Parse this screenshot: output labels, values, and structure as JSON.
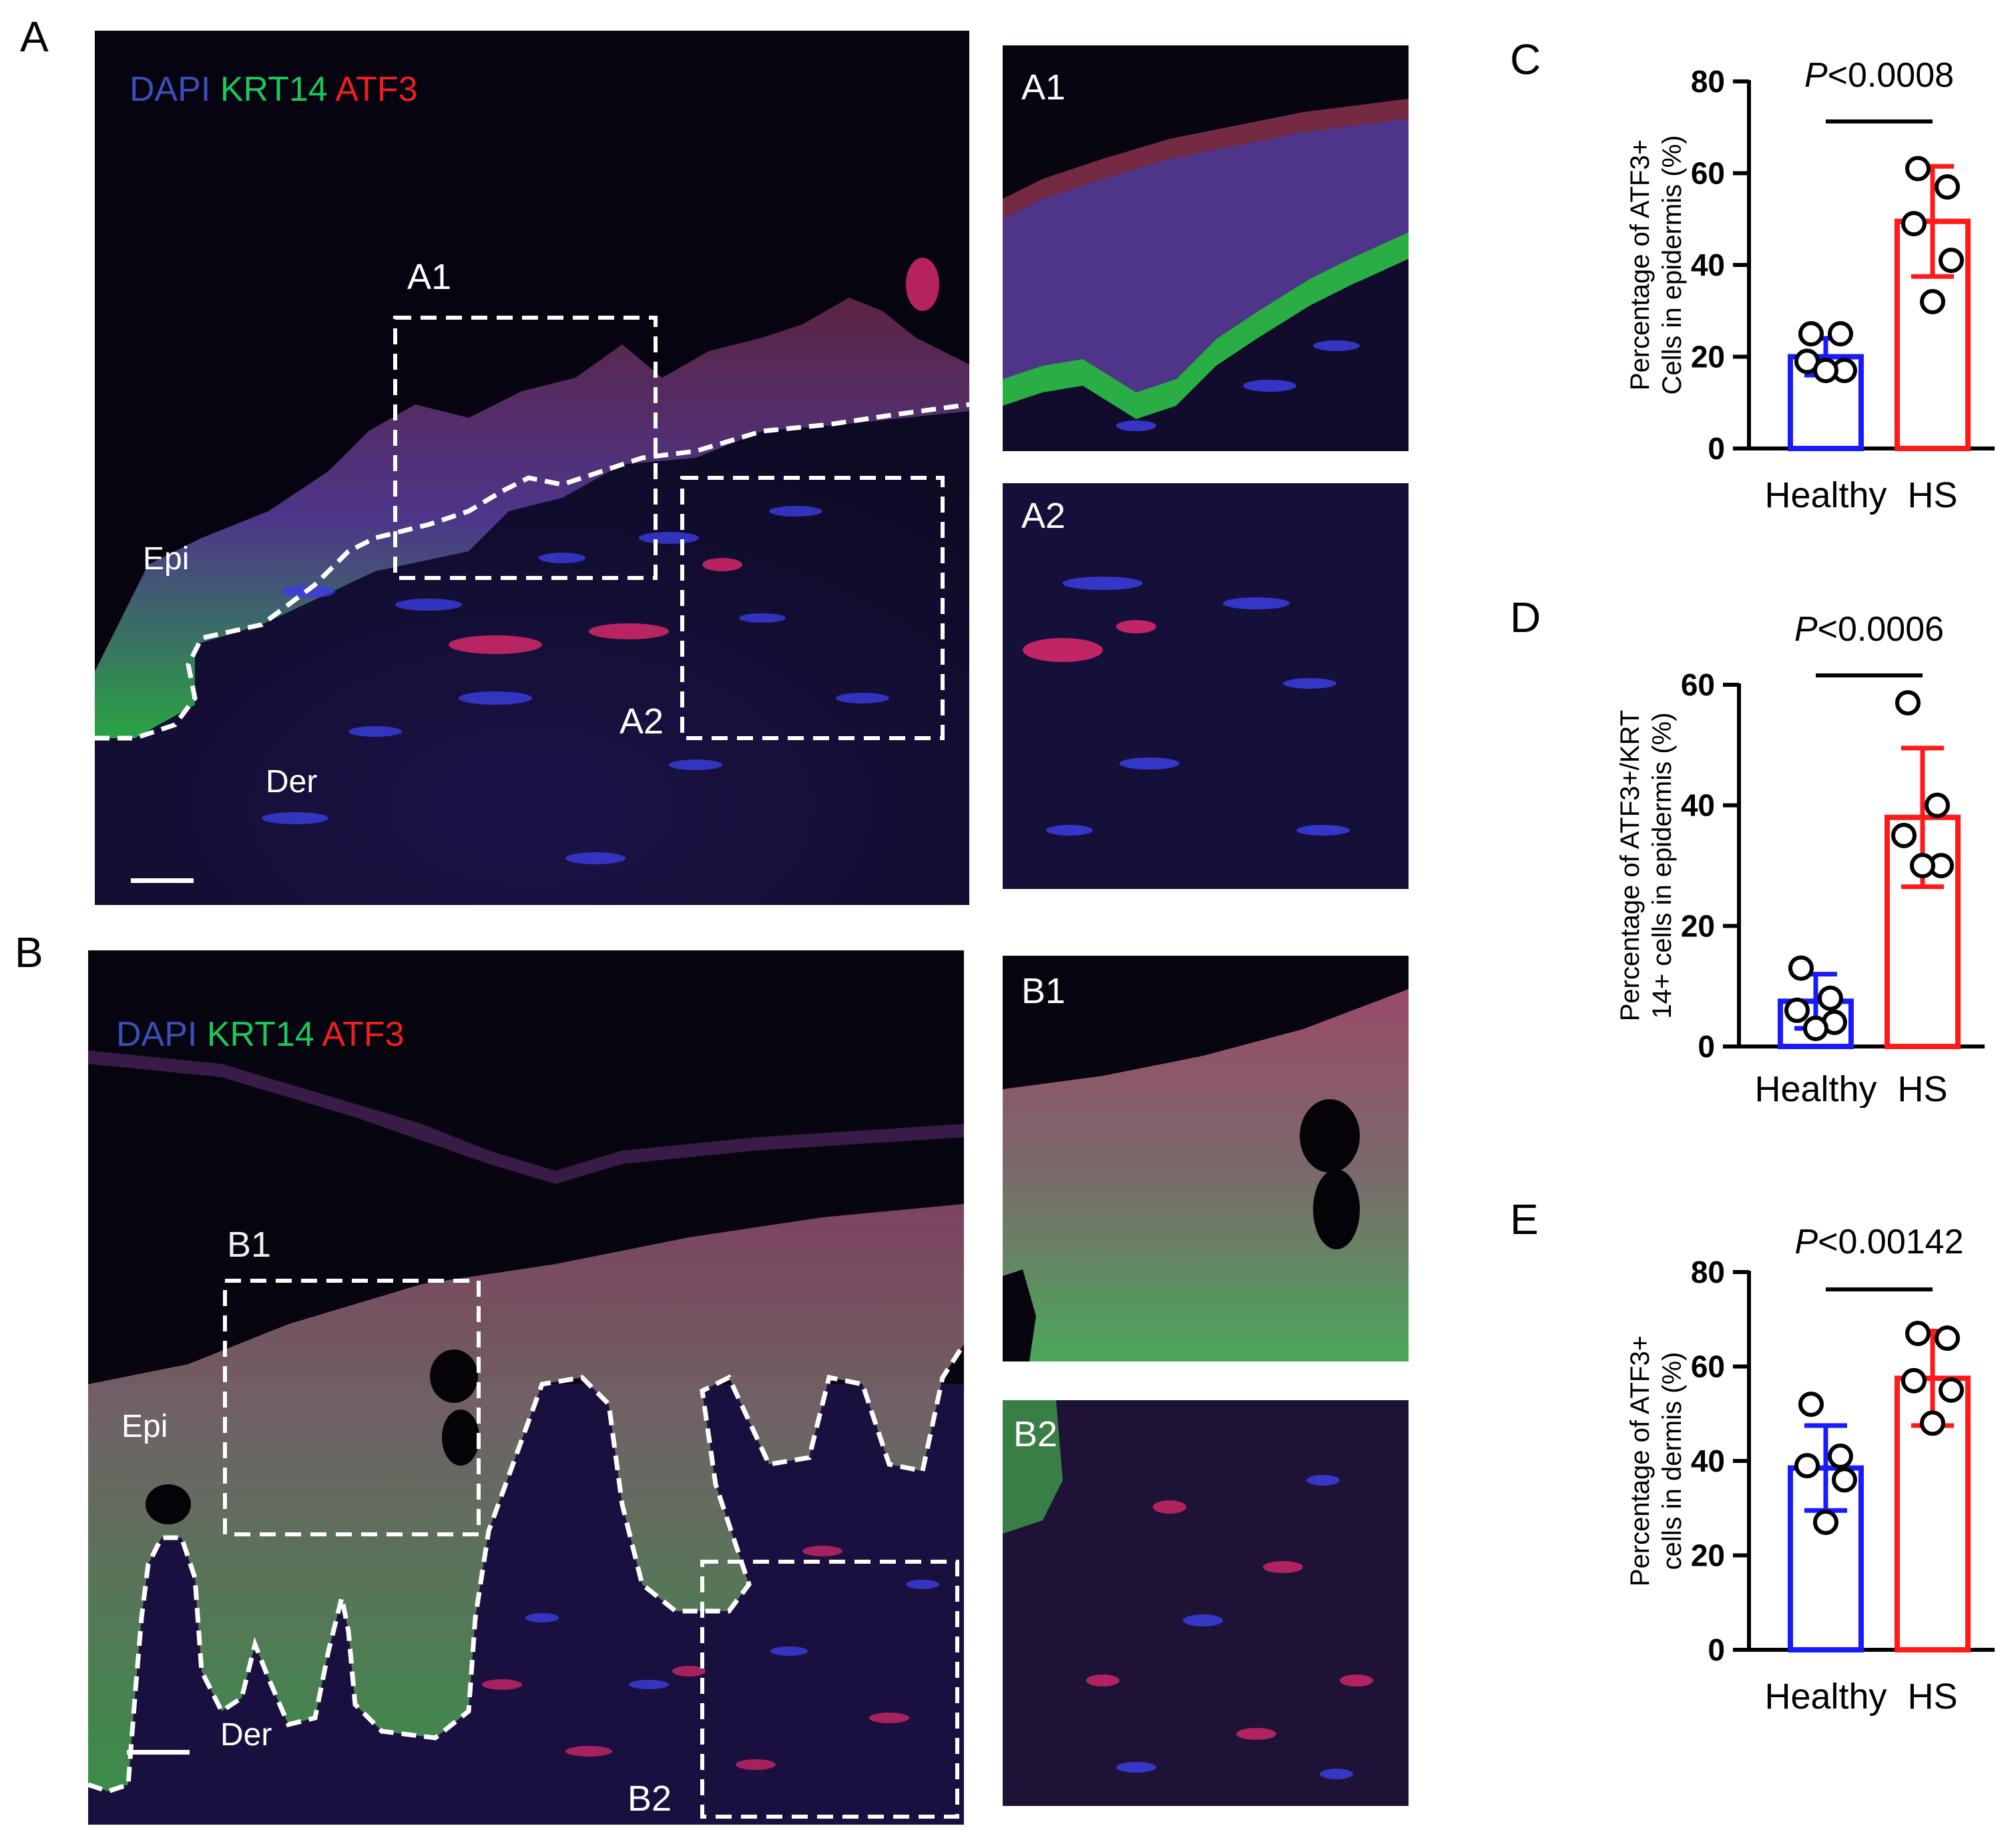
{
  "figure": {
    "panel_letters": {
      "A": "A",
      "B": "B",
      "C": "C",
      "D": "D",
      "E": "E"
    },
    "panel_a": {
      "channels": {
        "dapi": "DAPI",
        "krt14": "KRT14",
        "atf3": "ATF3"
      },
      "regions": {
        "epi": "Epi",
        "der": "Der"
      },
      "boxes": {
        "a1": "A1",
        "a2": "A2"
      },
      "insets": {
        "a1": "A1",
        "a2": "A2"
      }
    },
    "panel_b": {
      "channels": {
        "dapi": "DAPI",
        "krt14": "KRT14",
        "atf3": "ATF3"
      },
      "regions": {
        "epi": "Epi",
        "der": "Der"
      },
      "boxes": {
        "b1": "B1",
        "b2": "B2"
      },
      "insets": {
        "b1": "B1",
        "b2": "B2"
      }
    },
    "colors": {
      "healthy": "#1a1aff",
      "hs": "#ff1a1a",
      "dapi": "#3a4fb8",
      "krt14": "#19c95a",
      "atf3": "#ee1f1f"
    }
  },
  "chart_data": [
    {
      "id": "C",
      "type": "bar",
      "categories": [
        "Healthy",
        "HS"
      ],
      "values": [
        20.0,
        49.5
      ],
      "errors": [
        4.0,
        12.0
      ],
      "points": [
        [
          25,
          25,
          19,
          17,
          17
        ],
        [
          61,
          57,
          49,
          41,
          32
        ]
      ],
      "ylabel_lines": [
        "Percentage of ATF3+",
        "Cells in epidermis (%)"
      ],
      "yticks": [
        "0",
        "20",
        "40",
        "60",
        "80"
      ],
      "ylim": [
        0,
        80
      ],
      "p_prefix": "P",
      "p_value": "<0.0008"
    },
    {
      "id": "D",
      "type": "bar",
      "categories": [
        "Healthy",
        "HS"
      ],
      "values": [
        7.5,
        38.0
      ],
      "errors": [
        4.5,
        11.5
      ],
      "points": [
        [
          13,
          8,
          6,
          4,
          3
        ],
        [
          57,
          40,
          35,
          30,
          30
        ]
      ],
      "ylabel_lines": [
        "Percentage of ATF3+/KRT",
        "14+ cells in epidermis (%)"
      ],
      "yticks": [
        "0",
        "20",
        "40",
        "60"
      ],
      "ylim": [
        0,
        60
      ],
      "p_prefix": "P",
      "p_value": "<0.0006"
    },
    {
      "id": "E",
      "type": "bar",
      "categories": [
        "Healthy",
        "HS"
      ],
      "values": [
        38.5,
        57.5
      ],
      "errors": [
        9.0,
        10.0
      ],
      "points": [
        [
          52,
          41,
          39,
          36,
          27
        ],
        [
          67,
          66,
          57,
          55,
          48
        ]
      ],
      "ylabel_lines": [
        "Percentage of ATF3+",
        "cells in dermis (%)"
      ],
      "yticks": [
        "0",
        "20",
        "40",
        "60",
        "80"
      ],
      "ylim": [
        0,
        80
      ],
      "p_prefix": "P",
      "p_value": "<0.00142"
    }
  ]
}
